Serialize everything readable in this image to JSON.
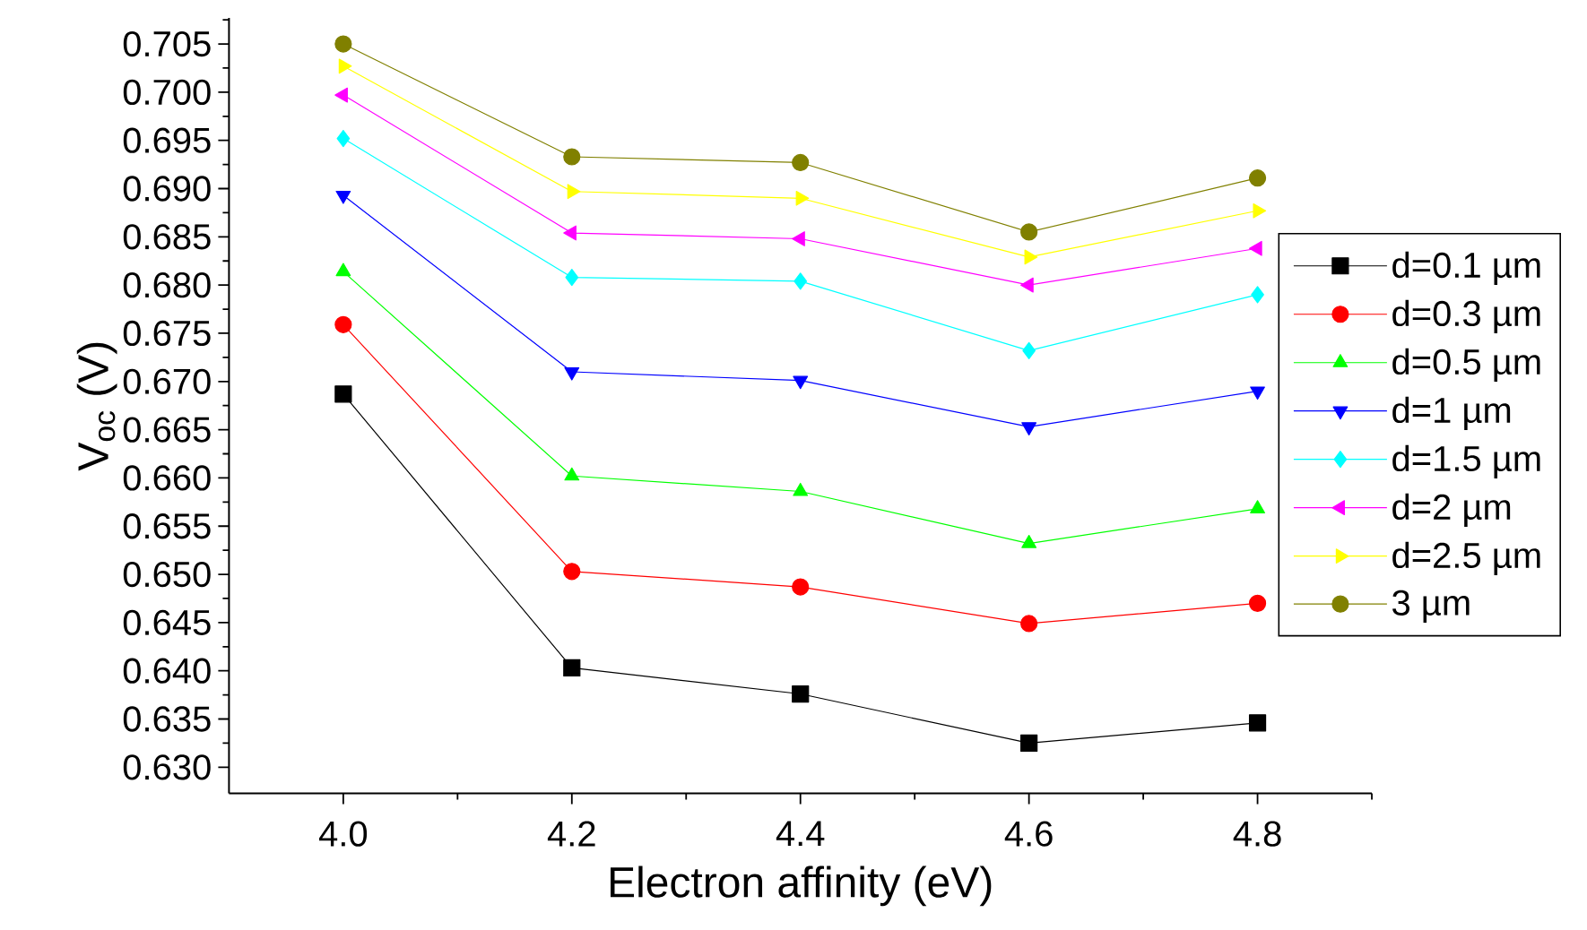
{
  "chart_data": {
    "type": "line",
    "xlabel": "Electron affinity (eV)",
    "ylabel": "V$_{oc}$ (V)",
    "x": [
      4.0,
      4.2,
      4.4,
      4.6,
      4.8
    ],
    "series": [
      {
        "name": "d=0.1 µm",
        "color": "#000000",
        "marker": "square",
        "values": [
          0.6687,
          0.6403,
          0.6376,
          0.6325,
          0.6346
        ]
      },
      {
        "name": "d=0.3 µm",
        "color": "#ff0000",
        "marker": "circle",
        "values": [
          0.6759,
          0.6503,
          0.6487,
          0.6449,
          0.647
        ]
      },
      {
        "name": "d=0.5 µm",
        "color": "#00ff00",
        "marker": "triangle",
        "values": [
          0.6814,
          0.6602,
          0.6586,
          0.6532,
          0.6568
        ]
      },
      {
        "name": "d=1 µm",
        "color": "#0000ff",
        "marker": "triangle-down",
        "values": [
          0.6893,
          0.671,
          0.6701,
          0.6653,
          0.669
        ]
      },
      {
        "name": "d=1.5 µm",
        "color": "#00ffff",
        "marker": "diamond",
        "values": [
          0.6952,
          0.6808,
          0.6804,
          0.6732,
          0.679
        ]
      },
      {
        "name": "d=2 µm",
        "color": "#ff00ff",
        "marker": "triangle-left",
        "values": [
          0.6997,
          0.6854,
          0.6848,
          0.68,
          0.6838
        ]
      },
      {
        "name": "d=2.5 µm",
        "color": "#ffff00",
        "marker": "triangle-right",
        "values": [
          0.7027,
          0.6897,
          0.689,
          0.6829,
          0.6877
        ]
      },
      {
        "name": "3 µm",
        "color": "#808000",
        "marker": "circle",
        "values": [
          0.705,
          0.6933,
          0.6927,
          0.6855,
          0.6911
        ]
      }
    ],
    "xlim": [
      3.9,
      4.9
    ],
    "ylim": [
      0.6273,
      0.7077
    ],
    "xticks": [
      {
        "value": 4.0,
        "label": "4.0"
      },
      {
        "value": 4.1,
        "label": null
      },
      {
        "value": 4.2,
        "label": "4.2"
      },
      {
        "value": 4.3,
        "label": null
      },
      {
        "value": 4.4,
        "label": "4.4"
      },
      {
        "value": 4.5,
        "label": null
      },
      {
        "value": 4.6,
        "label": "4.6"
      },
      {
        "value": 4.7,
        "label": null
      },
      {
        "value": 4.8,
        "label": "4.8"
      },
      {
        "value": 4.9,
        "label": null
      }
    ],
    "yticks": [
      {
        "value": 0.63,
        "label": "0.630"
      },
      {
        "value": 0.6325,
        "label": null
      },
      {
        "value": 0.635,
        "label": "0.635"
      },
      {
        "value": 0.6375,
        "label": null
      },
      {
        "value": 0.64,
        "label": "0.640"
      },
      {
        "value": 0.6425,
        "label": null
      },
      {
        "value": 0.645,
        "label": "0.645"
      },
      {
        "value": 0.6475,
        "label": null
      },
      {
        "value": 0.65,
        "label": "0.650"
      },
      {
        "value": 0.6525,
        "label": null
      },
      {
        "value": 0.655,
        "label": "0.655"
      },
      {
        "value": 0.6575,
        "label": null
      },
      {
        "value": 0.66,
        "label": "0.660"
      },
      {
        "value": 0.6625,
        "label": null
      },
      {
        "value": 0.665,
        "label": "0.665"
      },
      {
        "value": 0.6675,
        "label": null
      },
      {
        "value": 0.67,
        "label": "0.670"
      },
      {
        "value": 0.6725,
        "label": null
      },
      {
        "value": 0.675,
        "label": "0.675"
      },
      {
        "value": 0.6775,
        "label": null
      },
      {
        "value": 0.68,
        "label": "0.680"
      },
      {
        "value": 0.6825,
        "label": null
      },
      {
        "value": 0.685,
        "label": "0.685"
      },
      {
        "value": 0.6875,
        "label": null
      },
      {
        "value": 0.69,
        "label": "0.690"
      },
      {
        "value": 0.6925,
        "label": null
      },
      {
        "value": 0.695,
        "label": "0.695"
      },
      {
        "value": 0.6975,
        "label": null
      },
      {
        "value": 0.7,
        "label": "0.700"
      },
      {
        "value": 0.7025,
        "label": null
      },
      {
        "value": 0.705,
        "label": "0.705"
      },
      {
        "value": 0.7075,
        "label": null
      }
    ],
    "legend": "right",
    "line_style": "solid"
  }
}
